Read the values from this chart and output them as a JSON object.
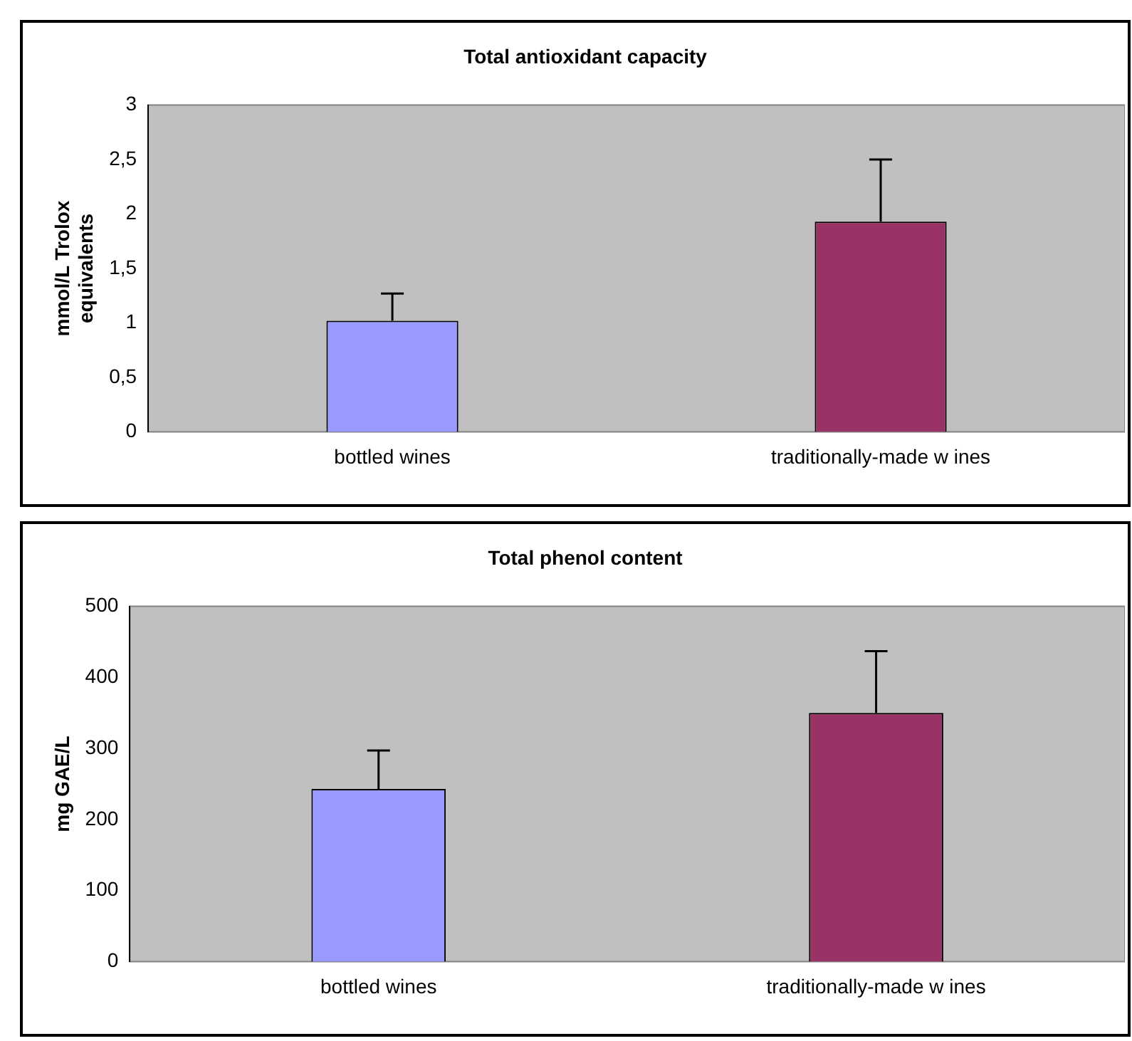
{
  "chart_data": [
    {
      "type": "bar",
      "title": "Total antioxidant capacity",
      "ylabel": "mmol/L Trolox equivalents",
      "categories": [
        "bottled wines",
        "traditionally-made w ines"
      ],
      "colors": [
        "#9999ff",
        "#993366"
      ],
      "values": [
        1.02,
        1.93
      ],
      "errors": [
        [
          1.02,
          1.27
        ],
        [
          1.93,
          2.5
        ]
      ],
      "ylim": [
        0,
        3
      ],
      "yticks": [
        0,
        {
          "value": 0.5,
          "label": "0,5"
        },
        1,
        {
          "value": 1.5,
          "label": "1,5"
        },
        2,
        {
          "value": 2.5,
          "label": "2,5"
        },
        3
      ],
      "grid": false,
      "legend": false
    },
    {
      "type": "bar",
      "title": "Total phenol content",
      "ylabel": "mg GAE/L",
      "categories": [
        "bottled wines",
        "traditionally-made w ines"
      ],
      "colors": [
        "#9999ff",
        "#993366"
      ],
      "values": [
        243,
        350
      ],
      "errors": [
        [
          243,
          297
        ],
        [
          350,
          437
        ]
      ],
      "ylim": [
        0,
        500
      ],
      "yticks": [
        0,
        100,
        200,
        300,
        400,
        500
      ],
      "grid": false,
      "legend": false
    }
  ]
}
